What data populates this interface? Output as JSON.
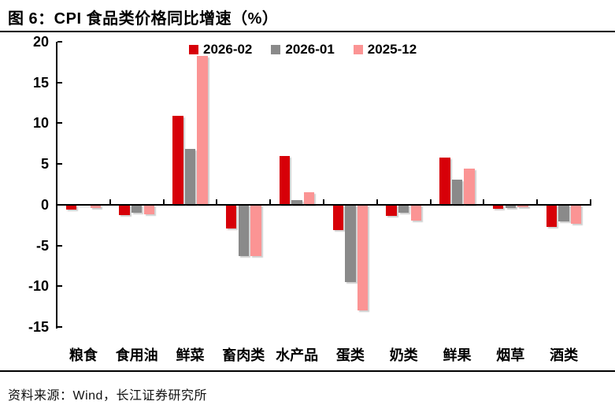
{
  "header": {
    "title": "图 6：CPI 食品类价格同比增速（%）"
  },
  "footer": {
    "source_label": "资料来源：Wind，长江证券研究所"
  },
  "chart_data": {
    "type": "bar",
    "title": "图 6：CPI 食品类价格同比增速（%）",
    "categories": [
      "粮食",
      "食用油",
      "鲜菜",
      "畜肉类",
      "水产品",
      "蛋类",
      "奶类",
      "鲜果",
      "烟草",
      "酒类"
    ],
    "series": [
      {
        "name": "2026-02",
        "color": "#d70008",
        "values": [
          -0.6,
          -1.3,
          10.9,
          -2.9,
          6.0,
          -3.1,
          -1.4,
          5.8,
          -0.5,
          -2.7
        ]
      },
      {
        "name": "2026-01",
        "color": "#8a8a8a",
        "values": [
          -0.1,
          -1.0,
          6.9,
          -6.3,
          0.6,
          -9.5,
          -1.0,
          3.1,
          -0.4,
          -2.0
        ]
      },
      {
        "name": "2025-12",
        "color": "#fb9494",
        "values": [
          -0.4,
          -1.2,
          18.3,
          -6.3,
          1.5,
          -13.0,
          -1.9,
          4.4,
          -0.3,
          -2.3
        ]
      }
    ],
    "xlabel": "",
    "ylabel": "",
    "ylim": [
      -15,
      20
    ],
    "ytick_interval": 5,
    "ytick_labels": [
      "20",
      "15",
      "10",
      "5",
      "0",
      "-5",
      "-10",
      "-15"
    ],
    "legend_position": "top-center",
    "grid": false,
    "axis_color": "#000000",
    "background_color": "#ffffff"
  }
}
